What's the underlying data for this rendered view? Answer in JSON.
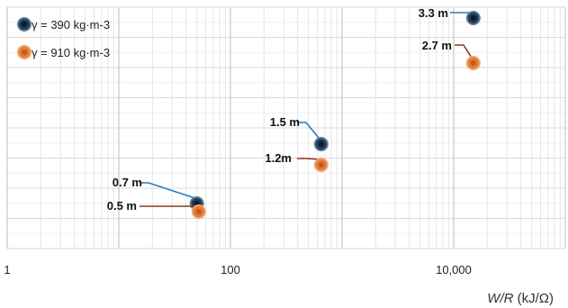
{
  "chart_data": {
    "type": "scatter",
    "title": "",
    "xlabel": "W/R (kJ/Ω)",
    "xlabel_parts": {
      "italic": "W/R",
      "unit": " (kJ/Ω)"
    },
    "x_scale": "log",
    "xlim": [
      1,
      100000
    ],
    "x_ticks": [
      {
        "value": 1,
        "label": "1"
      },
      {
        "value": 100,
        "label": "100"
      },
      {
        "value": 10000,
        "label": "10,000"
      }
    ],
    "ylabel": "",
    "y_ticks_shown": false,
    "grid": true,
    "legend": {
      "placement": "top-left",
      "entries": [
        "γ = 390 kg·m-3",
        "γ = 910 kg·m-3"
      ]
    },
    "series": [
      {
        "name": "γ = 390 kg·m-3",
        "color": "#1f3a56",
        "points": [
          {
            "x": 50,
            "label": "0.7 m"
          },
          {
            "x": 650,
            "label": "1.5 m"
          },
          {
            "x": 15000,
            "label": "3.3 m"
          }
        ]
      },
      {
        "name": "γ = 910 kg·m-3",
        "color": "#e07b39",
        "points": [
          {
            "x": 52,
            "label": "0.5 m"
          },
          {
            "x": 650,
            "label": "1.2m"
          },
          {
            "x": 15000,
            "label": "2.7 m"
          }
        ]
      }
    ]
  }
}
